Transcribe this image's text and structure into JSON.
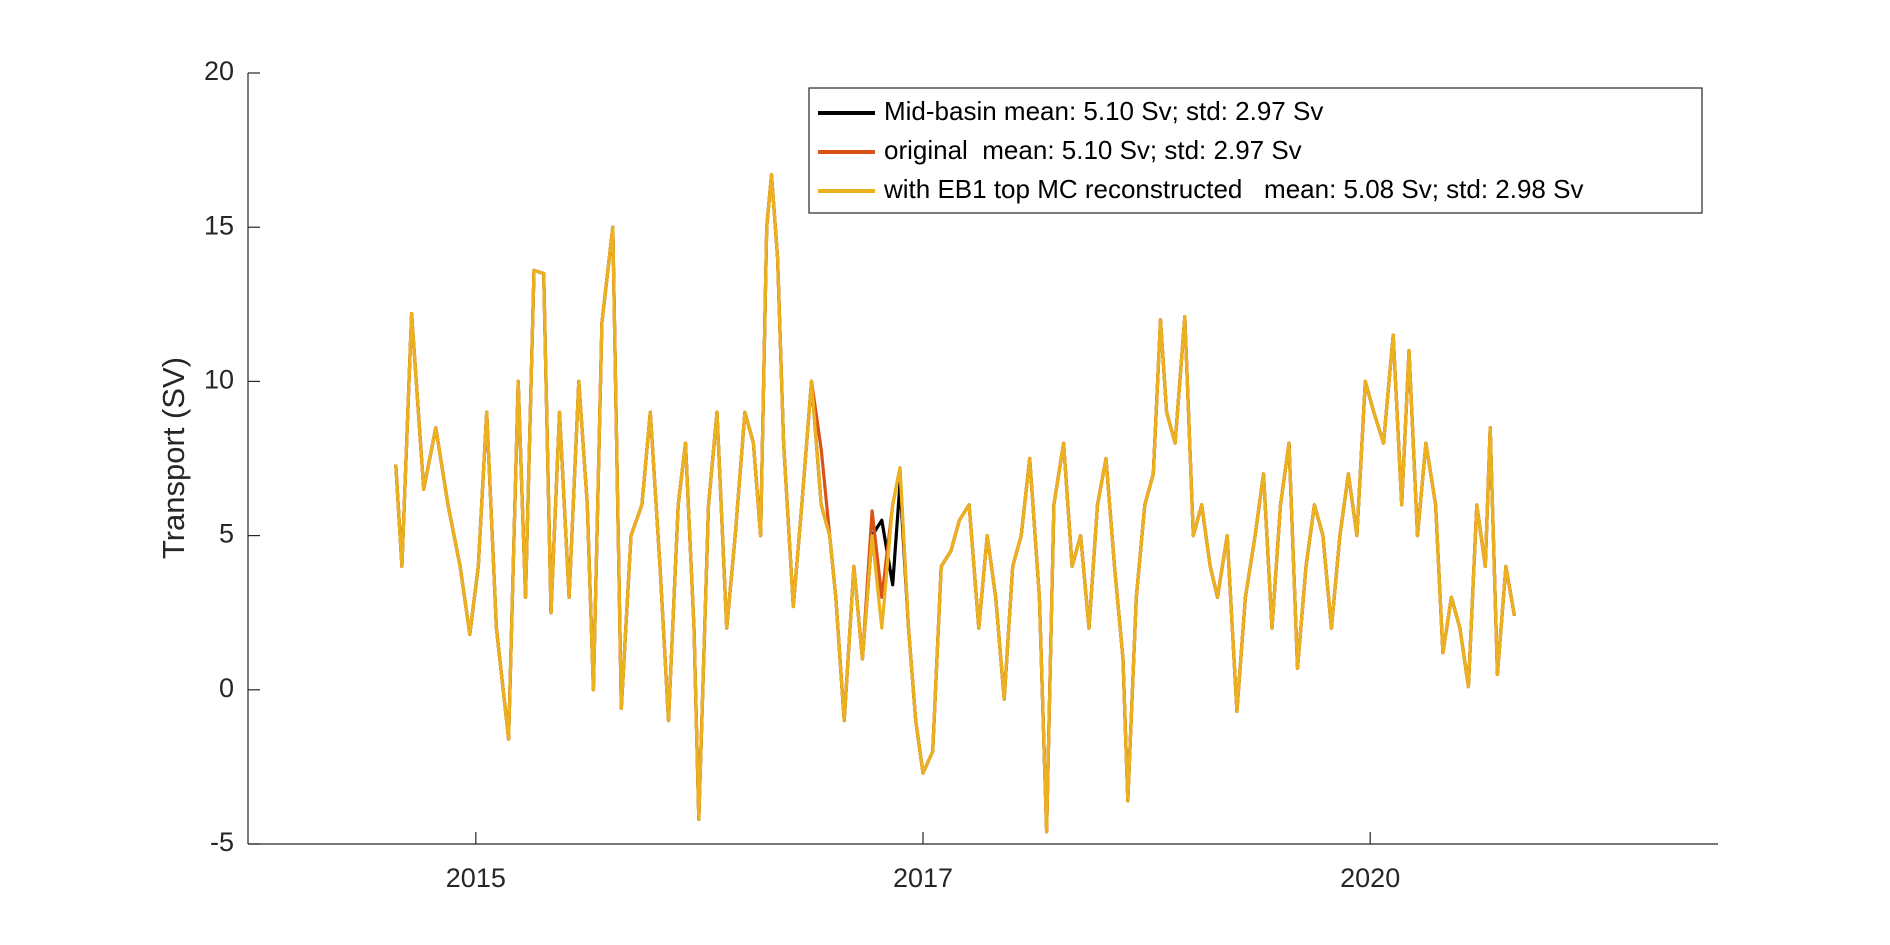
{
  "chart_data": {
    "type": "line",
    "y_label": "Transport (SV)",
    "x": [
      -66,
      -61,
      -53,
      -43,
      -33,
      -23,
      -13,
      -5,
      2,
      9,
      17,
      27,
      35,
      41,
      48,
      56,
      62,
      69,
      77,
      85,
      92,
      97,
      104,
      113,
      120,
      128,
      137,
      144,
      152,
      159,
      167,
      173,
      180,
      184,
      192,
      199,
      207,
      214,
      222,
      229,
      235,
      240,
      244,
      249,
      254,
      262,
      269,
      277,
      285,
      292,
      297,
      304,
      312,
      319,
      327,
      335,
      344,
      350,
      357,
      363,
      369,
      377,
      384,
      392,
      399,
      407,
      415,
      422,
      429,
      436,
      443,
      450,
      457,
      465,
      471,
      477,
      485,
      492,
      499,
      506,
      513,
      520,
      527,
      534,
      538,
      545,
      552,
      559,
      565,
      570,
      577,
      585,
      592,
      599,
      606,
      612,
      620,
      628,
      635,
      643,
      650,
      657,
      664,
      671,
      678,
      685,
      692,
      699,
      706,
      713,
      720,
      727,
      734,
      741,
      749,
      757,
      764,
      770,
      777,
      784,
      792,
      798,
      805,
      812,
      819,
      826,
      833,
      837,
      843,
      850,
      857
    ],
    "series": [
      {
        "name": "Mid-basin mean: 5.10 Sv; std: 2.97 Sv",
        "color": "#000000",
        "values": [
          7.3,
          4,
          12.2,
          6.5,
          8.5,
          6,
          4,
          1.8,
          4,
          9,
          2,
          -1.6,
          10,
          3,
          13.6,
          13.5,
          2.5,
          9,
          3,
          10,
          6,
          0,
          11.9,
          15,
          -0.6,
          5,
          6,
          9,
          4,
          -1,
          6,
          8,
          2,
          -4.2,
          6,
          9,
          2,
          5,
          9,
          8,
          5,
          15,
          16.7,
          14,
          8,
          2.7,
          6,
          10,
          6,
          5,
          3,
          -1,
          4,
          1,
          5,
          5.5,
          3.4,
          6.7,
          2,
          -1,
          -2.7,
          -2,
          4,
          4.5,
          5.5,
          6,
          2,
          5,
          3,
          -0.3,
          4,
          5,
          7.5,
          3,
          -4.6,
          6,
          8,
          4,
          5,
          2,
          6,
          7.5,
          4,
          1,
          -3.6,
          3,
          6,
          7,
          12,
          9,
          8,
          12.1,
          5,
          6,
          4,
          3,
          5,
          -0.7,
          3,
          5,
          7,
          2,
          6,
          8,
          0.7,
          4,
          6,
          5,
          2,
          5,
          7,
          5,
          10,
          9,
          8,
          11.5,
          6,
          11,
          5,
          8,
          6,
          1.2,
          3,
          2,
          0.1,
          6,
          4,
          8.5,
          0.5,
          4,
          2.4
        ]
      },
      {
        "name": "original  mean: 5.10 Sv; std: 2.97 Sv",
        "color": "#D95319",
        "values": [
          7.3,
          4,
          12.2,
          6.5,
          8.5,
          6,
          4,
          1.8,
          4,
          9,
          2,
          -1.6,
          10,
          3,
          13.6,
          13.5,
          2.5,
          9,
          3,
          10,
          6,
          0,
          11.9,
          15,
          -0.6,
          5,
          6,
          9,
          4,
          -1,
          6,
          8,
          2,
          -4.2,
          6,
          9,
          2,
          5,
          9,
          8,
          5,
          15,
          16.7,
          14,
          8,
          2.7,
          6,
          10,
          7.8,
          5,
          3,
          -1,
          4,
          1,
          5.8,
          3,
          6,
          7.2,
          2,
          -1,
          -2.7,
          -2,
          4,
          4.5,
          5.5,
          6,
          2,
          5,
          3,
          -0.3,
          4,
          5,
          7.5,
          3,
          -4.6,
          6,
          8,
          4,
          5,
          2,
          6,
          7.5,
          4,
          1,
          -3.6,
          3,
          6,
          7,
          12,
          9,
          8,
          12.1,
          5,
          6,
          4,
          3,
          5,
          -0.7,
          3,
          5,
          7,
          2,
          6,
          8,
          0.7,
          4,
          6,
          5,
          2,
          5,
          7,
          5,
          10,
          9,
          8,
          11.5,
          6,
          11,
          5,
          8,
          6,
          1.2,
          3,
          2,
          0.1,
          6,
          4,
          8.5,
          0.5,
          4,
          2.4
        ]
      },
      {
        "name": "with EB1 top MC reconstructed   mean: 5.08 Sv; std: 2.98 Sv",
        "color": "#EDB120",
        "values": [
          7.3,
          4,
          12.2,
          6.5,
          8.5,
          6,
          4,
          1.8,
          4,
          9,
          2,
          -1.6,
          10,
          3,
          13.6,
          13.5,
          2.5,
          9,
          3,
          10,
          6,
          0,
          11.9,
          15,
          -0.6,
          5,
          6,
          9,
          4,
          -1,
          6,
          8,
          2,
          -4.2,
          6,
          9,
          2,
          5,
          9,
          8,
          5,
          15,
          16.7,
          14,
          8,
          2.7,
          6,
          10,
          6,
          5,
          3,
          -1,
          4,
          1,
          5,
          2,
          6,
          7.2,
          2,
          -1,
          -2.7,
          -2,
          4,
          4.5,
          5.5,
          6,
          2,
          5,
          3,
          -0.3,
          4,
          5,
          7.5,
          3,
          -4.6,
          6,
          8,
          4,
          5,
          2,
          6,
          7.5,
          4,
          1,
          -3.6,
          3,
          6,
          7,
          12,
          9,
          8,
          12.1,
          5,
          6,
          4,
          3,
          5,
          -0.7,
          3,
          5,
          7,
          2,
          6,
          8,
          0.7,
          4,
          6,
          5,
          2,
          5,
          7,
          5,
          10,
          9,
          8,
          11.5,
          6,
          11,
          5,
          8,
          6,
          1.2,
          3,
          2,
          0.1,
          6,
          4,
          8.5,
          0.5,
          4,
          2.4
        ]
      }
    ],
    "xlim": [
      -188,
      1025
    ],
    "xticks": [
      {
        "value": 0,
        "label": "2015"
      },
      {
        "value": 369,
        "label": "2017"
      },
      {
        "value": 738,
        "label": "2020"
      }
    ],
    "ylim": [
      -5,
      20
    ],
    "yticks": [
      -5,
      0,
      5,
      10,
      15,
      20
    ],
    "grid": false,
    "legend": "northeast"
  }
}
